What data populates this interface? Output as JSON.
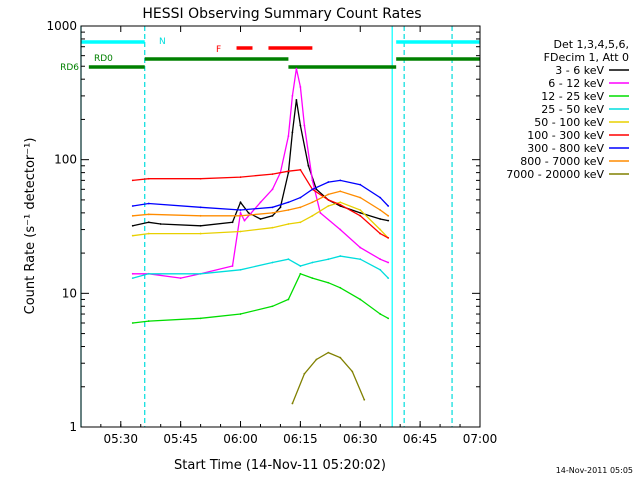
{
  "chart_data": {
    "type": "line",
    "title": "HESSI Observing Summary Count Rates",
    "xlabel": "Start Time (14-Nov-11 05:20:02)",
    "ylabel": "Count Rate (s⁻¹ detector⁻¹)",
    "y_scale": "log",
    "xlim": [
      "05:20:02",
      "07:00:00"
    ],
    "ylim": [
      1,
      1000
    ],
    "x_ticks": [
      "05:30",
      "05:45",
      "06:00",
      "06:15",
      "06:30",
      "06:45",
      "07:00"
    ],
    "y_ticks": [
      "1",
      "10",
      "100",
      "1000"
    ],
    "legend_position": "right",
    "legend_header": [
      "Det 1,3,4,5,6,",
      "FDecim 1, Att 0"
    ],
    "footer_date": "14-Nov-2011 05:05",
    "series": [
      {
        "name": "3 - 6 keV",
        "color": "#000000",
        "x": [
          "05:33",
          "05:37",
          "05:40",
          "05:50",
          "05:58",
          "06:00",
          "06:02",
          "06:05",
          "06:08",
          "06:10",
          "06:12",
          "06:13",
          "06:14",
          "06:15",
          "06:17",
          "06:19",
          "06:22",
          "06:25",
          "06:30",
          "06:35",
          "06:37"
        ],
        "y": [
          32,
          34,
          33,
          32,
          34,
          48,
          40,
          36,
          38,
          44,
          80,
          160,
          280,
          180,
          90,
          60,
          50,
          45,
          40,
          36,
          35
        ]
      },
      {
        "name": "6 - 12 keV",
        "color": "#ff00ff",
        "x": [
          "05:33",
          "05:37",
          "05:45",
          "05:50",
          "05:58",
          "06:00",
          "06:01",
          "06:05",
          "06:08",
          "06:10",
          "06:12",
          "06:13",
          "06:14",
          "06:15",
          "06:16",
          "06:18",
          "06:20",
          "06:25",
          "06:30",
          "06:35",
          "06:37"
        ],
        "y": [
          14,
          14,
          13,
          14,
          16,
          40,
          35,
          48,
          60,
          80,
          150,
          300,
          480,
          350,
          180,
          70,
          40,
          30,
          22,
          18,
          17
        ]
      },
      {
        "name": "12 - 25 keV",
        "color": "#00dd00",
        "x": [
          "05:33",
          "05:37",
          "05:50",
          "06:00",
          "06:08",
          "06:12",
          "06:15",
          "06:18",
          "06:22",
          "06:25",
          "06:30",
          "06:35",
          "06:37"
        ],
        "y": [
          6,
          6.2,
          6.5,
          7,
          8,
          9,
          14,
          13,
          12,
          11,
          9,
          7,
          6.5
        ]
      },
      {
        "name": "25 - 50 keV",
        "color": "#00dddd",
        "x": [
          "05:33",
          "05:37",
          "05:50",
          "06:00",
          "06:08",
          "06:12",
          "06:15",
          "06:18",
          "06:22",
          "06:25",
          "06:30",
          "06:35",
          "06:37"
        ],
        "y": [
          13,
          14,
          14,
          15,
          17,
          18,
          16,
          17,
          18,
          19,
          18,
          15,
          13
        ]
      },
      {
        "name": "50 - 100 keV",
        "color": "#e8d000",
        "x": [
          "05:33",
          "05:37",
          "05:50",
          "06:00",
          "06:08",
          "06:12",
          "06:15",
          "06:18",
          "06:22",
          "06:25",
          "06:30",
          "06:35",
          "06:37"
        ],
        "y": [
          27,
          28,
          28,
          29,
          31,
          33,
          34,
          38,
          45,
          48,
          42,
          30,
          26
        ]
      },
      {
        "name": "100 - 300 keV",
        "color": "#ff0000",
        "x": [
          "05:33",
          "05:37",
          "05:50",
          "06:00",
          "06:08",
          "06:12",
          "06:15",
          "06:18",
          "06:22",
          "06:25",
          "06:30",
          "06:35",
          "06:37"
        ],
        "y": [
          70,
          72,
          72,
          74,
          78,
          82,
          84,
          60,
          50,
          46,
          38,
          28,
          26
        ]
      },
      {
        "name": "300 - 800 keV",
        "color": "#0000ff",
        "x": [
          "05:33",
          "05:37",
          "05:50",
          "06:00",
          "06:08",
          "06:12",
          "06:15",
          "06:18",
          "06:22",
          "06:25",
          "06:30",
          "06:35",
          "06:37"
        ],
        "y": [
          45,
          47,
          44,
          42,
          44,
          48,
          52,
          60,
          68,
          70,
          65,
          52,
          45
        ]
      },
      {
        "name": "800 - 7000 keV",
        "color": "#ff8c00",
        "x": [
          "05:33",
          "05:37",
          "05:50",
          "06:00",
          "06:08",
          "06:12",
          "06:15",
          "06:18",
          "06:22",
          "06:25",
          "06:30",
          "06:35",
          "06:37"
        ],
        "y": [
          38,
          39,
          38,
          38,
          40,
          42,
          44,
          48,
          55,
          58,
          52,
          42,
          38
        ]
      },
      {
        "name": "7000 - 20000 keV",
        "color": "#808000",
        "x": [
          "06:13",
          "06:16",
          "06:19",
          "06:22",
          "06:25",
          "06:28",
          "06:31"
        ],
        "y": [
          1.5,
          2.5,
          3.2,
          3.6,
          3.3,
          2.6,
          1.6
        ]
      }
    ],
    "annotations": [
      {
        "text": "N",
        "color": "#00dddd"
      },
      {
        "text": "F",
        "color": "#ff0000"
      },
      {
        "text": "RD0",
        "color": "#008000"
      },
      {
        "text": "RD6",
        "color": "#008000"
      }
    ],
    "state_bars": [
      {
        "label": "N",
        "color": "#00ffff",
        "segments": [
          [
            "05:20:02",
            "05:36"
          ],
          [
            "06:39",
            "07:00"
          ]
        ]
      },
      {
        "label": "F",
        "color": "#ff0000",
        "segments": [
          [
            "05:59",
            "06:03"
          ],
          [
            "06:07",
            "06:18"
          ]
        ]
      },
      {
        "label": "RD6",
        "color": "#008000",
        "segments": [
          [
            "05:22",
            "05:36"
          ],
          [
            "05:36",
            "06:12"
          ],
          [
            "06:12",
            "06:39"
          ],
          [
            "06:39",
            "07:00"
          ]
        ]
      }
    ],
    "marker_lines": [
      {
        "color": "#00ffff",
        "style": "solid",
        "x": [
          "05:20:02",
          "06:38"
        ]
      },
      {
        "color": "#00dddd",
        "style": "dashed",
        "x": [
          "05:36",
          "06:41",
          "06:53"
        ]
      }
    ]
  }
}
